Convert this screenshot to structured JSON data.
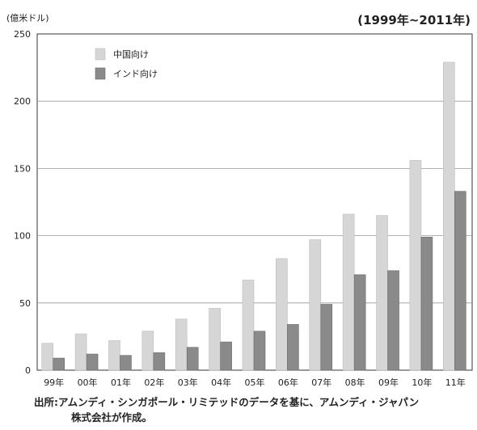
{
  "header": {
    "unit": "(億米ドル)",
    "period": "(1999年~2011年)"
  },
  "chart_data": {
    "type": "bar",
    "categories": [
      "99年",
      "00年",
      "01年",
      "02年",
      "03年",
      "04年",
      "05年",
      "06年",
      "07年",
      "08年",
      "09年",
      "10年",
      "11年"
    ],
    "series": [
      {
        "name": "中国向け",
        "color": "#d6d6d6",
        "values": [
          20,
          27,
          22,
          29,
          38,
          46,
          67,
          83,
          97,
          116,
          115,
          156,
          229
        ]
      },
      {
        "name": "インド向け",
        "color": "#8a8a8a",
        "values": [
          9,
          12,
          11,
          13,
          17,
          21,
          29,
          34,
          49,
          71,
          74,
          99,
          133
        ]
      }
    ],
    "ylim": [
      0,
      250
    ],
    "yticks": [
      0,
      50,
      100,
      150,
      200,
      250
    ],
    "grid": true,
    "legend_position": "top-left"
  },
  "footer": {
    "source_line1": "出所:アムンディ・シンガポール・リミテッドのデータを基に、アムンディ・ジャパン",
    "source_line2": "株式会社が作成。"
  }
}
